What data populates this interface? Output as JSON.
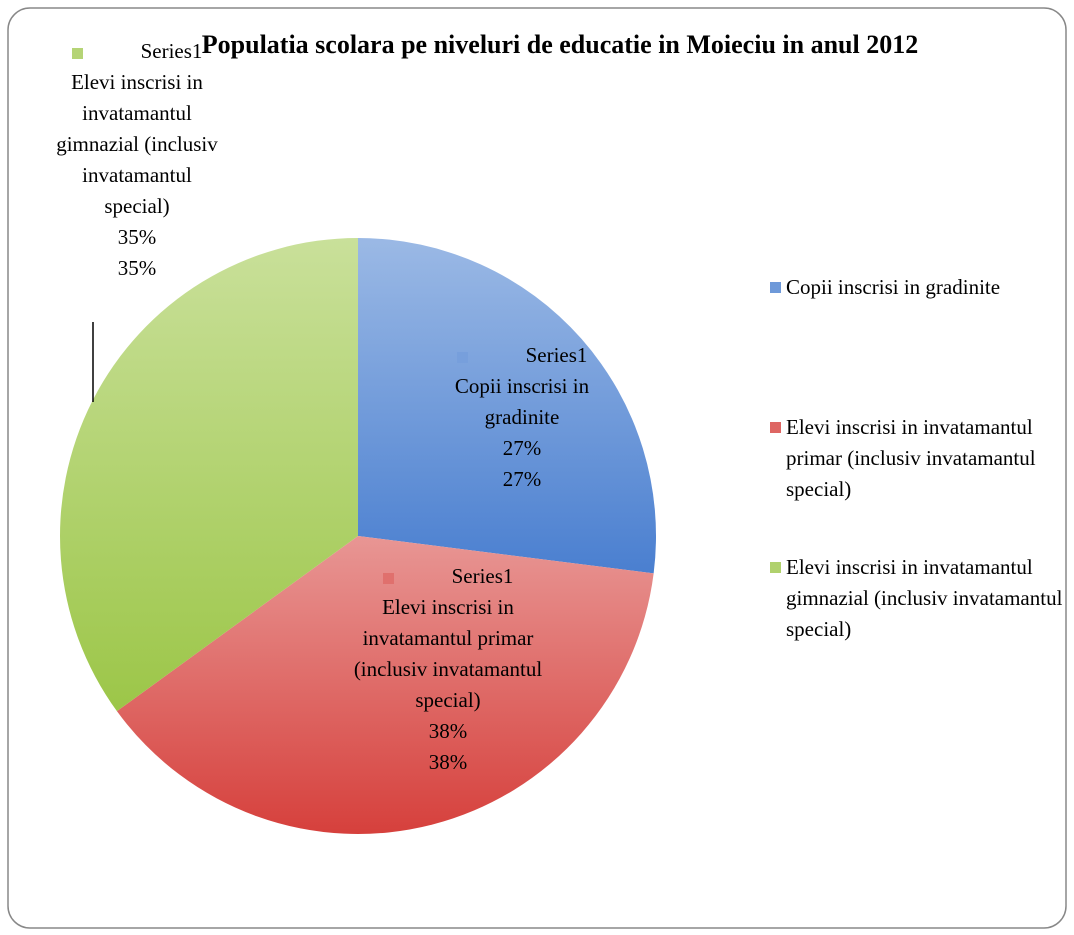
{
  "chart_data": {
    "type": "pie",
    "title": "Populatia scolara pe niveluri de educatie in Moieciu in anul 2012",
    "series_name": "Series1",
    "categories": [
      "Copii inscrisi in gradinite",
      "Elevi inscrisi in invatamantul primar (inclusiv invatamantul special)",
      "Elevi inscrisi in invatamantul gimnazial (inclusiv invatamantul special)"
    ],
    "values": [
      27,
      38,
      35
    ],
    "value_labels": [
      "27%",
      "38%",
      "35%"
    ],
    "colors": [
      "#4a7fd0",
      "#d6403c",
      "#9cc648"
    ],
    "legend": "right"
  }
}
